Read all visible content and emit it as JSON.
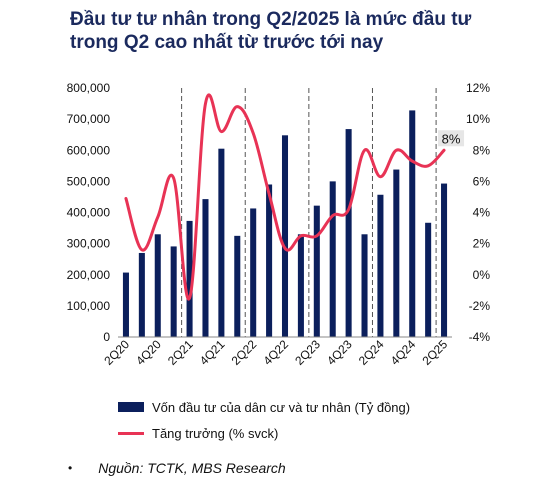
{
  "title_lines": [
    "Đầu tư tư nhân trong Q2/2025 là mức đầu tư",
    "trong Q2 cao nhất từ trước tới nay"
  ],
  "source": {
    "bullet": "•",
    "text": "Nguồn: TCTK, MBS Research"
  },
  "colors": {
    "bar": "#0b1f5c",
    "line": "#e83355",
    "title": "#1b2a5e",
    "dashed_divider": "#555555"
  },
  "chart_data": {
    "type": "bar",
    "x": [
      "2Q20",
      "3Q20",
      "4Q20",
      "1Q21",
      "2Q21",
      "3Q21",
      "4Q21",
      "1Q22",
      "2Q22",
      "3Q22",
      "4Q22",
      "1Q23",
      "2Q23",
      "3Q23",
      "4Q23",
      "1Q24",
      "2Q24",
      "3Q24",
      "4Q24",
      "1Q25",
      "2Q25"
    ],
    "x_tick_labels": [
      "2Q20",
      "4Q20",
      "2Q21",
      "4Q21",
      "2Q22",
      "4Q22",
      "2Q23",
      "4Q23",
      "2Q24",
      "4Q24",
      "2Q25"
    ],
    "y_left_ticks": [
      "0",
      "100,000",
      "200,000",
      "300,000",
      "400,000",
      "500,000",
      "600,000",
      "700,000",
      "800,000"
    ],
    "y_left_range": [
      0,
      800000
    ],
    "y_right_ticks": [
      "-4%",
      "-2%",
      "0%",
      "2%",
      "4%",
      "6%",
      "8%",
      "10%",
      "12%"
    ],
    "y_right_range": [
      -4,
      12
    ],
    "series": [
      {
        "name": "Vốn đầu tư của dân cư và tư nhân (Tỷ đồng)",
        "type": "bar",
        "axis": "left",
        "values": [
          207000,
          270000,
          330000,
          291000,
          373000,
          443000,
          605000,
          325000,
          413000,
          490000,
          648000,
          330000,
          422000,
          500000,
          668000,
          330000,
          457000,
          538000,
          728000,
          367000,
          493000
        ]
      },
      {
        "name": "Tăng trưởng (% svck)",
        "type": "line",
        "axis": "right",
        "values": [
          4.9,
          1.6,
          3.7,
          6.2,
          -1.5,
          11.0,
          9.2,
          10.8,
          9.1,
          5.2,
          1.7,
          2.5,
          2.5,
          3.8,
          4.2,
          8.0,
          6.3,
          8.0,
          7.3,
          7.0,
          8.0
        ]
      }
    ],
    "annotations": [
      {
        "text": "8%",
        "series": "Tăng trưởng (% svck)",
        "category": "2Q25"
      }
    ],
    "dividers_after": [
      "1Q21",
      "1Q22",
      "1Q23",
      "1Q24",
      "1Q25"
    ],
    "grid": false,
    "legend_placement": "bottom"
  }
}
